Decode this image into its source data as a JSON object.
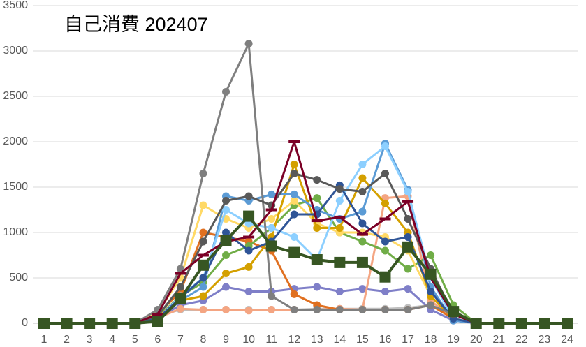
{
  "chart_data": {
    "type": "line",
    "title": "自己消費 202407",
    "categories": [
      1,
      2,
      3,
      4,
      5,
      6,
      7,
      8,
      9,
      10,
      11,
      12,
      13,
      14,
      15,
      16,
      17,
      18,
      19,
      20,
      21,
      22,
      23,
      24
    ],
    "ylim": [
      0,
      3500
    ],
    "yticks": [
      0,
      500,
      1000,
      1500,
      2000,
      2500,
      3000,
      3500
    ],
    "grid": true,
    "series": [
      {
        "color": "#bfbfbf",
        "marker": "circle",
        "values": [
          0,
          0,
          0,
          0,
          0,
          80,
          150,
          150,
          150,
          150,
          150,
          150,
          160,
          160,
          160,
          160,
          170,
          200,
          60,
          0,
          0,
          0,
          0,
          0
        ]
      },
      {
        "color": "#7f7fc8",
        "marker": "circle",
        "values": [
          0,
          0,
          0,
          0,
          0,
          60,
          200,
          250,
          400,
          350,
          350,
          380,
          400,
          350,
          380,
          350,
          380,
          150,
          30,
          0,
          0,
          0,
          0,
          0
        ]
      },
      {
        "color": "#f4a582",
        "marker": "circle",
        "values": [
          0,
          0,
          0,
          0,
          0,
          60,
          160,
          150,
          150,
          140,
          150,
          150,
          150,
          160,
          150,
          1380,
          1400,
          250,
          50,
          0,
          0,
          0,
          0,
          0
        ]
      },
      {
        "color": "#e07020",
        "marker": "circle",
        "values": [
          0,
          0,
          0,
          0,
          0,
          100,
          350,
          1000,
          950,
          900,
          800,
          320,
          200,
          150,
          150,
          150,
          150,
          200,
          50,
          0,
          0,
          0,
          0,
          0
        ]
      },
      {
        "color": "#70ad47",
        "marker": "circle",
        "values": [
          0,
          0,
          0,
          0,
          0,
          70,
          300,
          450,
          750,
          850,
          1050,
          1300,
          1380,
          1000,
          900,
          800,
          600,
          750,
          200,
          0,
          0,
          0,
          0,
          0
        ]
      },
      {
        "color": "#ffd966",
        "marker": "circle",
        "values": [
          0,
          0,
          0,
          0,
          0,
          120,
          500,
          1300,
          1150,
          1050,
          1150,
          1350,
          1100,
          1000,
          1000,
          950,
          800,
          300,
          50,
          0,
          0,
          0,
          0,
          0
        ]
      },
      {
        "color": "#d4a000",
        "marker": "circle",
        "values": [
          0,
          0,
          0,
          0,
          0,
          80,
          250,
          300,
          550,
          620,
          950,
          1750,
          1050,
          1050,
          1600,
          1320,
          1000,
          300,
          50,
          0,
          0,
          0,
          0,
          0
        ]
      },
      {
        "color": "#5b9bd5",
        "marker": "circle",
        "values": [
          0,
          0,
          0,
          0,
          0,
          40,
          250,
          400,
          1400,
          1350,
          1420,
          1420,
          1250,
          1150,
          1230,
          1980,
          1470,
          400,
          30,
          0,
          0,
          0,
          0,
          0
        ]
      },
      {
        "color": "#8ccfff",
        "marker": "circle",
        "values": [
          0,
          0,
          0,
          0,
          0,
          50,
          300,
          500,
          1250,
          1100,
          1050,
          950,
          700,
          1350,
          1750,
          1950,
          1450,
          500,
          50,
          0,
          0,
          0,
          0,
          0
        ]
      },
      {
        "color": "#2f5597",
        "marker": "circle",
        "values": [
          0,
          0,
          0,
          0,
          0,
          50,
          280,
          500,
          1000,
          800,
          900,
          1200,
          1200,
          1520,
          1100,
          900,
          950,
          350,
          50,
          0,
          0,
          0,
          0,
          0
        ]
      },
      {
        "color": "#7f7f7f",
        "marker": "circle",
        "values": [
          0,
          0,
          0,
          0,
          0,
          150,
          600,
          1650,
          2550,
          3080,
          300,
          150,
          150,
          150,
          150,
          150,
          150,
          200,
          100,
          0,
          0,
          0,
          0,
          0
        ]
      },
      {
        "color": "#595959",
        "marker": "circle",
        "values": [
          0,
          0,
          0,
          0,
          0,
          80,
          400,
          900,
          1350,
          1400,
          1300,
          1650,
          1580,
          1480,
          1450,
          1650,
          1150,
          600,
          100,
          0,
          0,
          0,
          0,
          0
        ]
      },
      {
        "color": "#7b0026",
        "marker": "dash",
        "values": [
          0,
          0,
          0,
          0,
          0,
          100,
          550,
          750,
          900,
          950,
          1250,
          2000,
          1130,
          1170,
          980,
          1150,
          1340,
          500,
          100,
          0,
          0,
          0,
          0,
          0
        ]
      },
      {
        "color": "#375623",
        "marker": "square",
        "values": [
          0,
          0,
          0,
          0,
          0,
          20,
          270,
          640,
          910,
          1180,
          850,
          780,
          700,
          670,
          670,
          510,
          840,
          540,
          130,
          0,
          0,
          0,
          0,
          0
        ]
      }
    ]
  }
}
